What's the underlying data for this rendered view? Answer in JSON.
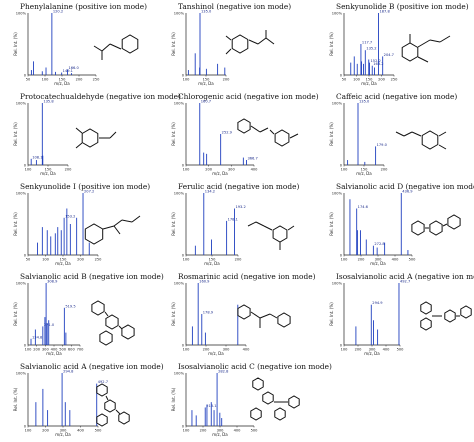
{
  "chart_data": [
    {
      "type": "bar",
      "title": "Phenylalanine (positive ion mode)",
      "xlabel": "m/z, Da",
      "ylabel": "Rel. Int. (%)",
      "xlim": [
        50,
        250
      ],
      "ylim": [
        0,
        100
      ],
      "yticks": [
        "0",
        "100%"
      ],
      "xticks": [
        "50",
        "100",
        "150",
        "200",
        "250"
      ],
      "color": "#1f3fbf",
      "peaks": [
        {
          "x": 60,
          "y": 8
        },
        {
          "x": 66,
          "y": 22
        },
        {
          "x": 92,
          "y": 6
        },
        {
          "x": 103,
          "y": 12
        },
        {
          "x": 120.2,
          "y": 100,
          "label": "120.2"
        },
        {
          "x": 131,
          "y": 5
        },
        {
          "x": 149,
          "y": 4,
          "label": "149.1"
        },
        {
          "x": 166,
          "y": 9,
          "label": "166.0"
        },
        {
          "x": 178,
          "y": 3
        }
      ]
    },
    {
      "type": "bar",
      "title": "Tanshinol (negative ion mode)",
      "xlabel": "m/z, Da",
      "ylabel": "Rel. Int. (%)",
      "xlim": [
        100,
        200
      ],
      "ylim": [
        0,
        100
      ],
      "yticks": [
        "0",
        "100%"
      ],
      "xticks": [
        "100",
        "150",
        "200"
      ],
      "color": "#1f3fbf",
      "peaks": [
        {
          "x": 106,
          "y": 8
        },
        {
          "x": 123,
          "y": 35
        },
        {
          "x": 134,
          "y": 12
        },
        {
          "x": 135.0,
          "y": 100,
          "label": "135.0"
        },
        {
          "x": 151,
          "y": 10
        },
        {
          "x": 179,
          "y": 18
        },
        {
          "x": 197,
          "y": 12
        }
      ]
    },
    {
      "type": "bar",
      "title": "Senkyunolide B (positive ion mode)",
      "xlabel": "m/z, Da",
      "ylabel": "Rel. Int. (%)",
      "xlim": [
        50,
        250
      ],
      "ylim": [
        0,
        100
      ],
      "yticks": [
        "0",
        "100%"
      ],
      "xticks": [
        "50",
        "100",
        "150",
        "200",
        "250"
      ],
      "color": "#1f3fbf",
      "peaks": [
        {
          "x": 77,
          "y": 20
        },
        {
          "x": 91,
          "y": 30
        },
        {
          "x": 103,
          "y": 18
        },
        {
          "x": 117.7,
          "y": 50,
          "label": "117.7"
        },
        {
          "x": 120,
          "y": 22
        },
        {
          "x": 128,
          "y": 18
        },
        {
          "x": 135.2,
          "y": 40,
          "label": "135.2"
        },
        {
          "x": 149,
          "y": 25
        },
        {
          "x": 152,
          "y": 20,
          "label": "152.2"
        },
        {
          "x": 163,
          "y": 15,
          "label": "163.2"
        },
        {
          "x": 172,
          "y": 12
        },
        {
          "x": 187.8,
          "y": 100,
          "label": "187.8"
        },
        {
          "x": 204.7,
          "y": 30,
          "label": "204.7"
        }
      ]
    },
    {
      "type": "bar",
      "title": "Protocatechualdehyde (negative ion mode)",
      "xlabel": "m/z, Da",
      "ylabel": "Rel. Int. (%)",
      "xlim": [
        100,
        200
      ],
      "ylim": [
        0,
        100
      ],
      "yticks": [
        "0",
        "100%"
      ],
      "xticks": [
        "100",
        "150",
        "200"
      ],
      "color": "#1f3fbf",
      "peaks": [
        {
          "x": 108,
          "y": 10,
          "label": "108.1"
        },
        {
          "x": 121,
          "y": 8
        },
        {
          "x": 135.8,
          "y": 100,
          "label": "135.8"
        },
        {
          "x": 137,
          "y": 15
        }
      ]
    },
    {
      "type": "bar",
      "title": "Chlorogenic acid (negative ion mode)",
      "xlabel": "m/z, Da",
      "ylabel": "Rel. Int. (%)",
      "xlim": [
        100,
        400
      ],
      "ylim": [
        0,
        100
      ],
      "yticks": [
        "0",
        "100%"
      ],
      "xticks": [
        "100",
        "200",
        "300",
        "400"
      ],
      "color": "#1f3fbf",
      "peaks": [
        {
          "x": 160.7,
          "y": 100,
          "label": "160.7"
        },
        {
          "x": 178,
          "y": 20
        },
        {
          "x": 191,
          "y": 18
        },
        {
          "x": 252.9,
          "y": 50,
          "label": "252.9"
        },
        {
          "x": 353,
          "y": 12
        },
        {
          "x": 366.7,
          "y": 8,
          "label": "366.7"
        }
      ]
    },
    {
      "type": "bar",
      "title": "Caffeic acid (negative ion mode)",
      "xlabel": "m/z, Da",
      "ylabel": "Rel. Int. (%)",
      "xlim": [
        100,
        200
      ],
      "ylim": [
        0,
        100
      ],
      "yticks": [
        "0",
        "100%"
      ],
      "xticks": [
        "100",
        "150",
        "200"
      ],
      "color": "#1f3fbf",
      "peaks": [
        {
          "x": 109,
          "y": 8
        },
        {
          "x": 135.0,
          "y": 100,
          "label": "135.0"
        },
        {
          "x": 152,
          "y": 5
        },
        {
          "x": 179,
          "y": 30,
          "label": "179.0"
        }
      ]
    },
    {
      "type": "bar",
      "title": "Senkyunolide I (positive ion mode)",
      "xlabel": "m/z, Da",
      "ylabel": "Rel. Int. (%)",
      "xlim": [
        50,
        250
      ],
      "ylim": [
        0,
        100
      ],
      "yticks": [
        "0",
        "100%"
      ],
      "xticks": [
        "50",
        "100",
        "150",
        "200",
        "250"
      ],
      "color": "#1f3fbf",
      "peaks": [
        {
          "x": 77,
          "y": 20
        },
        {
          "x": 91,
          "y": 45
        },
        {
          "x": 105,
          "y": 40
        },
        {
          "x": 115,
          "y": 30
        },
        {
          "x": 128,
          "y": 35
        },
        {
          "x": 135,
          "y": 45
        },
        {
          "x": 145,
          "y": 40
        },
        {
          "x": 153.2,
          "y": 60,
          "label": "153.2"
        },
        {
          "x": 161,
          "y": 75
        },
        {
          "x": 171,
          "y": 50
        },
        {
          "x": 189,
          "y": 60
        },
        {
          "x": 207.2,
          "y": 100,
          "label": "207.2"
        },
        {
          "x": 225,
          "y": 20
        }
      ]
    },
    {
      "type": "bar",
      "title": "Ferulic acid (negative ion mode)",
      "xlabel": "m/z, Da",
      "ylabel": "Rel. Int. (%)",
      "xlim": [
        100,
        200
      ],
      "ylim": [
        0,
        100
      ],
      "yticks": [
        "0",
        "100%"
      ],
      "xticks": [
        "100",
        "150",
        "200"
      ],
      "color": "#1f3fbf",
      "peaks": [
        {
          "x": 118,
          "y": 15
        },
        {
          "x": 134.2,
          "y": 100,
          "label": "134.2"
        },
        {
          "x": 149,
          "y": 25
        },
        {
          "x": 178.1,
          "y": 55,
          "label": "178.1"
        },
        {
          "x": 193.2,
          "y": 75,
          "label": "193.2"
        }
      ]
    },
    {
      "type": "bar",
      "title": "Salvianolic acid D (negative ion mode)",
      "xlabel": "m/z, Da",
      "ylabel": "Rel. Int. (%)",
      "xlim": [
        100,
        500
      ],
      "ylim": [
        0,
        100
      ],
      "yticks": [
        "0",
        "100%"
      ],
      "xticks": [
        "100",
        "200",
        "300",
        "400",
        "500"
      ],
      "color": "#1f3fbf",
      "peaks": [
        {
          "x": 135,
          "y": 90
        },
        {
          "x": 174.6,
          "y": 75,
          "label": "174.6"
        },
        {
          "x": 179,
          "y": 40
        },
        {
          "x": 197,
          "y": 40
        },
        {
          "x": 231,
          "y": 25
        },
        {
          "x": 272.8,
          "y": 15,
          "label": "272.8"
        },
        {
          "x": 295,
          "y": 12
        },
        {
          "x": 339,
          "y": 20
        },
        {
          "x": 436.9,
          "y": 100,
          "label": "436.9"
        },
        {
          "x": 476,
          "y": 8
        }
      ]
    },
    {
      "type": "bar",
      "title": "Salvianolic acid B (negative ion mode)",
      "xlabel": "m/z, Da",
      "ylabel": "Rel. Int. (%)",
      "xlim": [
        100,
        700
      ],
      "ylim": [
        0,
        100
      ],
      "yticks": [
        "0",
        "100%"
      ],
      "xticks": [
        "100",
        "200",
        "300",
        "400",
        "500",
        "600",
        "700"
      ],
      "color": "#1f3fbf",
      "peaks": [
        {
          "x": 134.8,
          "y": 10,
          "label": "134.8"
        },
        {
          "x": 185,
          "y": 25
        },
        {
          "x": 271.0,
          "y": 30,
          "label": "271.0"
        },
        {
          "x": 295.1,
          "y": 45
        },
        {
          "x": 308.9,
          "y": 100,
          "label": "308.9"
        },
        {
          "x": 321,
          "y": 35
        },
        {
          "x": 339,
          "y": 40
        },
        {
          "x": 519.5,
          "y": 60,
          "label": "519.5"
        },
        {
          "x": 537,
          "y": 20
        }
      ]
    },
    {
      "type": "bar",
      "title": "Rosmarinic acid (negative ion mode)",
      "xlabel": "m/z, Da",
      "ylabel": "Rel. Int. (%)",
      "xlim": [
        100,
        400
      ],
      "ylim": [
        0,
        100
      ],
      "yticks": [
        "0",
        "100%"
      ],
      "xticks": [
        "100",
        "200",
        "300",
        "400"
      ],
      "color": "#1f3fbf",
      "peaks": [
        {
          "x": 132,
          "y": 30
        },
        {
          "x": 160.9,
          "y": 100,
          "label": "160.9"
        },
        {
          "x": 178.9,
          "y": 50,
          "label": "178.9"
        },
        {
          "x": 197,
          "y": 20
        },
        {
          "x": 359,
          "y": 65
        }
      ]
    },
    {
      "type": "bar",
      "title": "Isosalvianolic acid A (negative ion mode)",
      "xlabel": "m/z, Da",
      "ylabel": "Rel. Int. (%)",
      "xlim": [
        100,
        500
      ],
      "ylim": [
        0,
        100
      ],
      "yticks": [
        "0",
        "100%"
      ],
      "xticks": [
        "100",
        "200",
        "300",
        "400",
        "500"
      ],
      "color": "#1f3fbf",
      "peaks": [
        {
          "x": 185,
          "y": 30
        },
        {
          "x": 294.9,
          "y": 65,
          "label": "294.9"
        },
        {
          "x": 311,
          "y": 40
        },
        {
          "x": 340,
          "y": 25
        },
        {
          "x": 492.7,
          "y": 100,
          "label": "492.7"
        }
      ]
    },
    {
      "type": "bar",
      "title": "Salvianolic acid A  (negative ion mode)",
      "xlabel": "m/z, Da",
      "ylabel": "Rel. Int. (%)",
      "xlim": [
        100,
        500
      ],
      "ylim": [
        0,
        100
      ],
      "yticks": [
        "0",
        "100%"
      ],
      "xticks": [
        "100",
        "200",
        "300",
        "400",
        "500"
      ],
      "color": "#1f3fbf",
      "peaks": [
        {
          "x": 145,
          "y": 45
        },
        {
          "x": 185,
          "y": 70
        },
        {
          "x": 212,
          "y": 30
        },
        {
          "x": 294.8,
          "y": 100,
          "label": "294.8"
        },
        {
          "x": 313,
          "y": 45
        },
        {
          "x": 339,
          "y": 30
        },
        {
          "x": 492.7,
          "y": 80,
          "label": "492.7"
        }
      ]
    },
    {
      "type": "bar",
      "title": "Isosalvianolic acid C (negative ion mode)",
      "xlabel": "m/z, Da",
      "ylabel": "Rel. Int. (%)",
      "xlim": [
        100,
        500
      ],
      "ylim": [
        0,
        100
      ],
      "yticks": [
        "0",
        "100%"
      ],
      "xticks": [
        "100",
        "200",
        "300",
        "400",
        "500"
      ],
      "color": "#1f3fbf",
      "peaks": [
        {
          "x": 135,
          "y": 30
        },
        {
          "x": 160,
          "y": 20
        },
        {
          "x": 213.1,
          "y": 35,
          "label": "213.1"
        },
        {
          "x": 223.2,
          "y": 40
        },
        {
          "x": 248.6,
          "y": 45
        },
        {
          "x": 265,
          "y": 30
        },
        {
          "x": 282.8,
          "y": 100,
          "label": "282.8"
        },
        {
          "x": 299,
          "y": 25
        },
        {
          "x": 310,
          "y": 15
        }
      ]
    }
  ]
}
